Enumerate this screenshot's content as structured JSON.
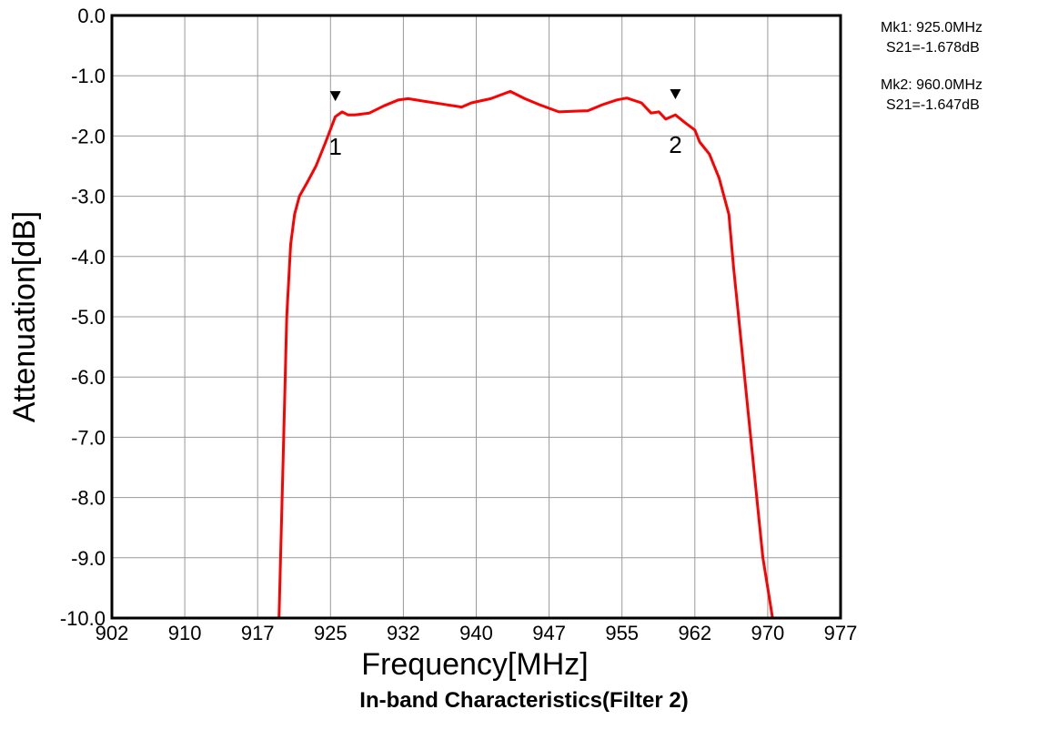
{
  "caption": "In-band Characteristics(Filter 2)",
  "chart_data": {
    "type": "line",
    "title": "",
    "xlabel": "Frequency[MHz]",
    "ylabel": "Attenuation[dB]",
    "xlim": [
      902,
      977
    ],
    "ylim": [
      -10.0,
      0.0
    ],
    "grid": true,
    "x_ticks": [
      "902",
      "910",
      "917",
      "925",
      "932",
      "940",
      "947",
      "955",
      "962",
      "970",
      "977"
    ],
    "y_ticks": [
      "0.0",
      "-1.0",
      "-2.0",
      "-3.0",
      "-4.0",
      "-5.0",
      "-6.0",
      "-7.0",
      "-8.0",
      "-9.0",
      "-10.0"
    ],
    "series": [
      {
        "color": "#ff0000",
        "x": [
          902,
          910,
          917,
          919.2,
          919.6,
          920.0,
          920.4,
          920.8,
          921.3,
          922.0,
          923.0,
          924.0,
          925.0,
          925.7,
          926.3,
          927.0,
          928.5,
          930.0,
          931.5,
          932.5,
          934.0,
          936.0,
          938.0,
          939.0,
          941.0,
          943.0,
          944.5,
          946.0,
          948.0,
          951.0,
          952.5,
          954.0,
          955.0,
          956.5,
          957.5,
          958.3,
          959.0,
          960.0,
          961.0,
          962.0,
          962.5,
          963.5,
          964.5,
          965.5,
          966.0,
          966.5,
          967.0,
          967.5,
          968.0,
          968.5,
          969.0,
          969.6,
          970.0,
          977.0
        ],
        "y": [
          -10.0,
          -10.0,
          -10.0,
          -10.0,
          -7.5,
          -5.0,
          -3.8,
          -3.3,
          -3.0,
          -2.8,
          -2.5,
          -2.1,
          -1.68,
          -1.6,
          -1.65,
          -1.65,
          -1.62,
          -1.5,
          -1.4,
          -1.38,
          -1.42,
          -1.47,
          -1.52,
          -1.45,
          -1.38,
          -1.26,
          -1.38,
          -1.48,
          -1.6,
          -1.58,
          -1.48,
          -1.4,
          -1.37,
          -1.45,
          -1.62,
          -1.6,
          -1.72,
          -1.65,
          -1.78,
          -1.9,
          -2.1,
          -2.3,
          -2.7,
          -3.3,
          -4.2,
          -5.0,
          -5.8,
          -6.6,
          -7.4,
          -8.2,
          -9.0,
          -9.6,
          -10.0,
          -10.0
        ]
      }
    ],
    "markers": [
      {
        "label": "1",
        "x": 925.0,
        "y": -1.678,
        "readout_freq": "Mk1:  925.0MHz",
        "readout_val": "S21=-1.678dB"
      },
      {
        "label": "2",
        "x": 960.0,
        "y": -1.647,
        "readout_freq": "Mk2:  960.0MHz",
        "readout_val": "S21=-1.647dB"
      }
    ]
  }
}
